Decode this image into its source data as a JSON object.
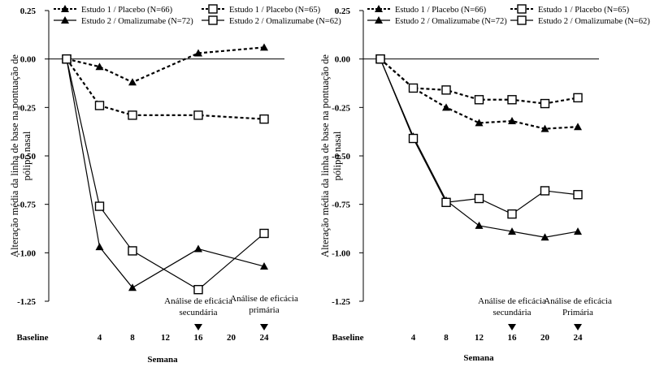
{
  "chart_data": [
    {
      "type": "line",
      "ylabel": "Alteração média da linha de base na pontuação de pólipo nasal",
      "xlabel": "Semana",
      "x_ticks": [
        "Baseline",
        "4",
        "8",
        "12",
        "16",
        "20",
        "24"
      ],
      "x_tick_values": [
        0,
        4,
        8,
        12,
        16,
        20,
        24
      ],
      "y_ticks": [
        "0.25",
        "0.00",
        "-0.25",
        "-0.50",
        "-0.75",
        "-1.00",
        "-1.25"
      ],
      "ylim": [
        -1.25,
        0.25
      ],
      "annotations": [
        {
          "x": 16,
          "text": "Análise de eficácia secundária"
        },
        {
          "x": 24,
          "text": "Análise de eficácia primária"
        }
      ],
      "series": [
        {
          "name": "Estudo 1 / Placebo (N=66)",
          "marker": "filled-triangle",
          "dashed": true,
          "x": [
            0,
            4,
            8,
            16,
            24
          ],
          "values": [
            0.0,
            -0.04,
            -0.12,
            0.03,
            0.06
          ]
        },
        {
          "name": "Estudo 2 / Omalizumabe (N=72)",
          "marker": "filled-triangle",
          "dashed": false,
          "x": [
            0,
            4,
            8,
            16,
            24
          ],
          "values": [
            0.0,
            -0.97,
            -1.18,
            -0.98,
            -1.07
          ]
        },
        {
          "name": "Estudo 1 / Placebo (N=65)",
          "marker": "open-square",
          "dashed": true,
          "x": [
            0,
            4,
            8,
            16,
            24
          ],
          "values": [
            0.0,
            -0.24,
            -0.29,
            -0.29,
            -0.31
          ]
        },
        {
          "name": "Estudo 2 / Omalizumabe (N=62)",
          "marker": "open-square",
          "dashed": false,
          "x": [
            0,
            4,
            8,
            16,
            24
          ],
          "values": [
            0.0,
            -0.76,
            -0.99,
            -1.19,
            -0.9
          ]
        }
      ]
    },
    {
      "type": "line",
      "ylabel": "Alteração média da linha de base na pontuação de pólipo nasal",
      "xlabel": "Semana",
      "x_ticks": [
        "Baseline",
        "4",
        "8",
        "12",
        "16",
        "20",
        "24"
      ],
      "x_tick_values": [
        0,
        4,
        8,
        12,
        16,
        20,
        24
      ],
      "y_ticks": [
        "0.25",
        "0.00",
        "-0.25",
        "-0.50",
        "-0.75",
        "-1.00",
        "-1.25"
      ],
      "ylim": [
        -1.25,
        0.25
      ],
      "annotations": [
        {
          "x": 16,
          "text": "Análise de eficácia secundária"
        },
        {
          "x": 24,
          "text": "Análise de eficácia Primária"
        }
      ],
      "series": [
        {
          "name": "Estudo 1 / Placebo (N=66)",
          "marker": "filled-triangle",
          "dashed": true,
          "x": [
            0,
            4,
            8,
            12,
            16,
            20,
            24
          ],
          "values": [
            0.0,
            -0.15,
            -0.25,
            -0.33,
            -0.32,
            -0.36,
            -0.35
          ]
        },
        {
          "name": "Estudo 2 / Omalizumabe (N=72)",
          "marker": "filled-triangle",
          "dashed": false,
          "x": [
            0,
            4,
            8,
            12,
            16,
            20,
            24
          ],
          "values": [
            0.0,
            -0.4,
            -0.73,
            -0.86,
            -0.89,
            -0.92,
            -0.89
          ]
        },
        {
          "name": "Estudo 1 / Placebo (N=65)",
          "marker": "open-square",
          "dashed": true,
          "x": [
            0,
            4,
            8,
            12,
            16,
            20,
            24
          ],
          "values": [
            0.0,
            -0.15,
            -0.16,
            -0.21,
            -0.21,
            -0.23,
            -0.2
          ]
        },
        {
          "name": "Estudo 2 / Omalizumabe (N=62)",
          "marker": "open-square",
          "dashed": false,
          "x": [
            0,
            4,
            8,
            12,
            16,
            20,
            24
          ],
          "values": [
            0.0,
            -0.41,
            -0.74,
            -0.72,
            -0.8,
            -0.68,
            -0.7
          ]
        }
      ]
    }
  ]
}
